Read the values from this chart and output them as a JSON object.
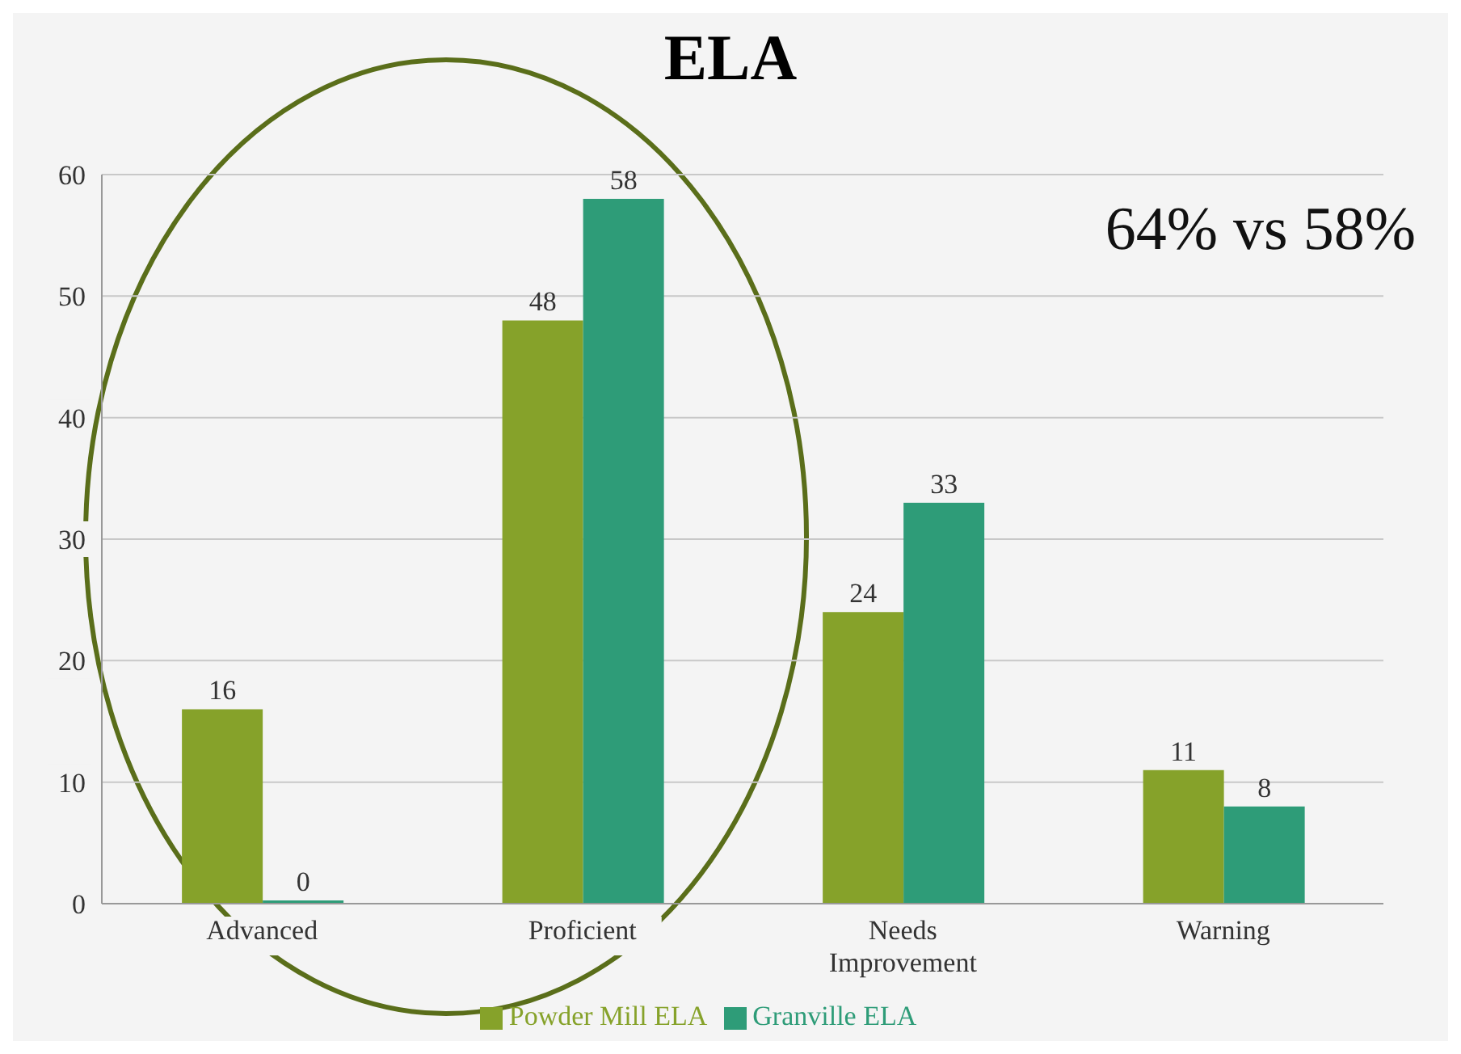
{
  "chart_data": {
    "type": "bar",
    "title": "ELA",
    "categories": [
      "Advanced",
      "Proficient",
      "Needs Improvement",
      "Warning"
    ],
    "series": [
      {
        "name": "Powder Mill ELA",
        "color": "#86a22a",
        "values": [
          16,
          48,
          24,
          11
        ]
      },
      {
        "name": "Granville ELA",
        "color": "#2e9c78",
        "values": [
          0,
          58,
          33,
          8
        ]
      }
    ],
    "ylim": [
      0,
      60
    ],
    "yticks": [
      0,
      10,
      20,
      30,
      40,
      50,
      60
    ],
    "grid": "y",
    "legend": "bottom",
    "data_labels": true,
    "annotations": [
      "64% vs 58%"
    ]
  }
}
